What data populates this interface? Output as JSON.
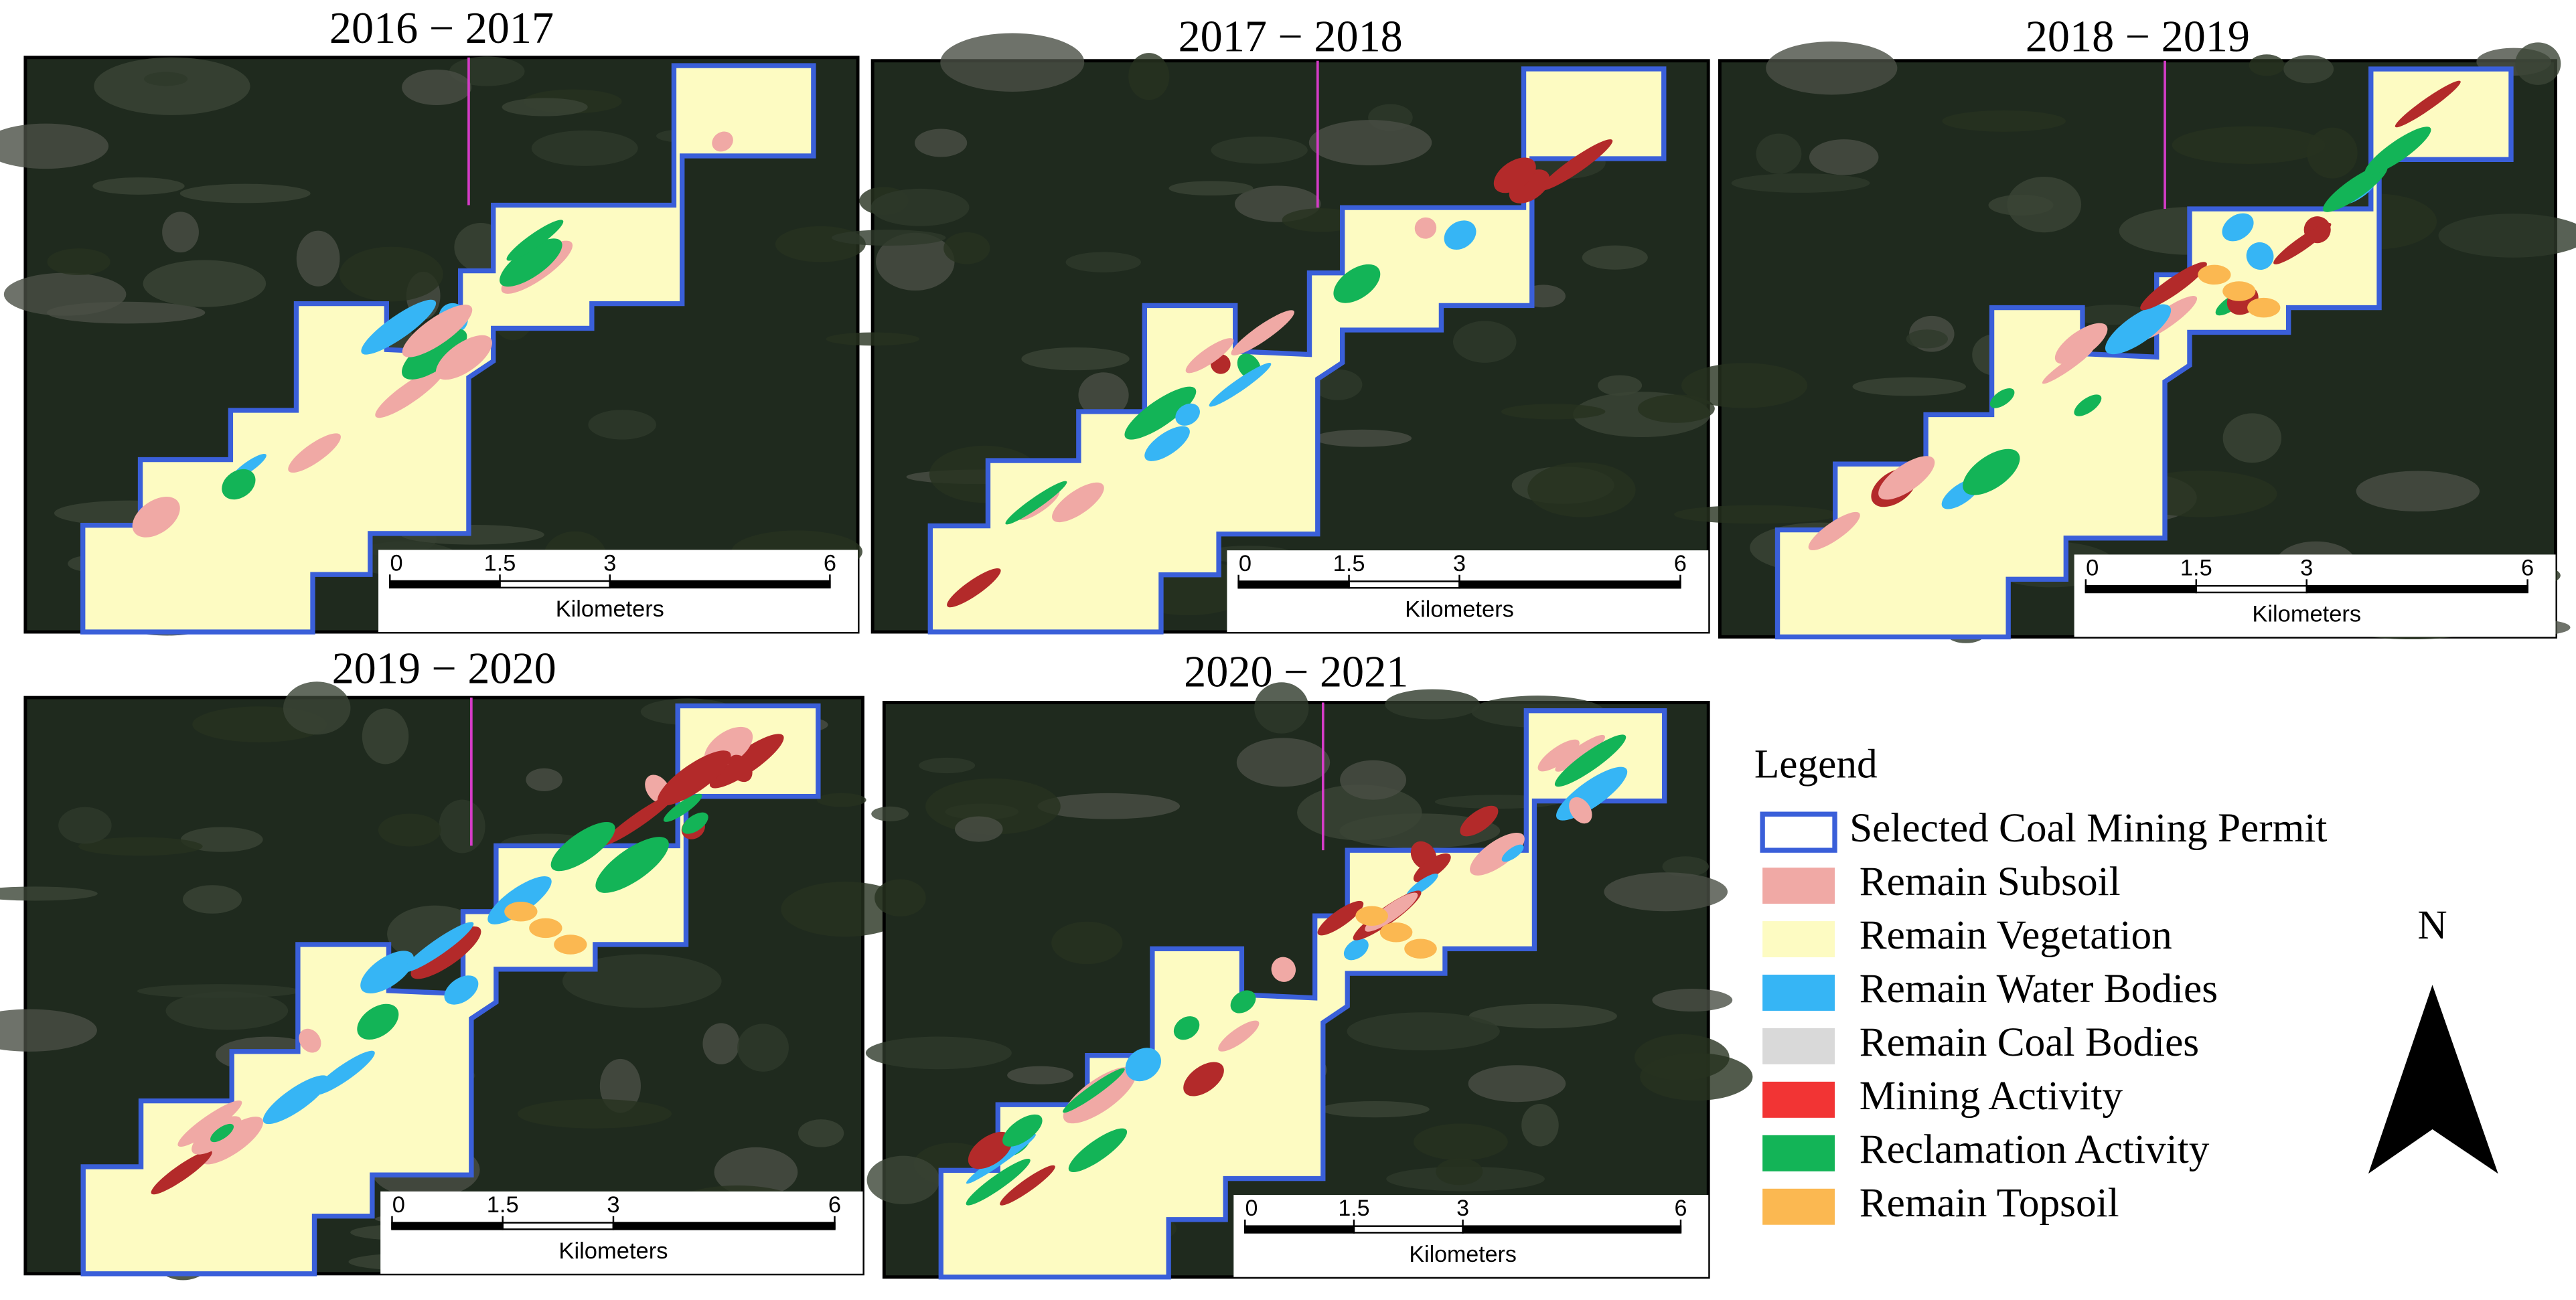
{
  "panels": [
    {
      "title": "2016 − 2017"
    },
    {
      "title": "2017 − 2018"
    },
    {
      "title": "2018 − 2019"
    },
    {
      "title": "2019 − 2020"
    },
    {
      "title": "2020 − 2021"
    }
  ],
  "scale_bar": {
    "ticks": [
      0,
      1.5,
      3,
      6
    ],
    "unit": "Kilometers"
  },
  "legend": {
    "title": "Legend",
    "items": [
      {
        "name": "Selected Coal Mining Permit",
        "color": "#3a5fd9",
        "outline": true
      },
      {
        "name": "Remain Subsoil",
        "color": "#f0a9a5"
      },
      {
        "name": "Remain Vegetation",
        "color": "#fdfbc2"
      },
      {
        "name": "Remain Water Bodies",
        "color": "#36b5f5"
      },
      {
        "name": "Remain Coal Bodies",
        "color": "#d9d9d9"
      },
      {
        "name": "Mining Activity",
        "color": "#f23434"
      },
      {
        "name": "Reclamation Activity",
        "color": "#13b457"
      },
      {
        "name": "Remain Topsoil",
        "color": "#fbb851"
      }
    ]
  },
  "north_arrow": "N"
}
